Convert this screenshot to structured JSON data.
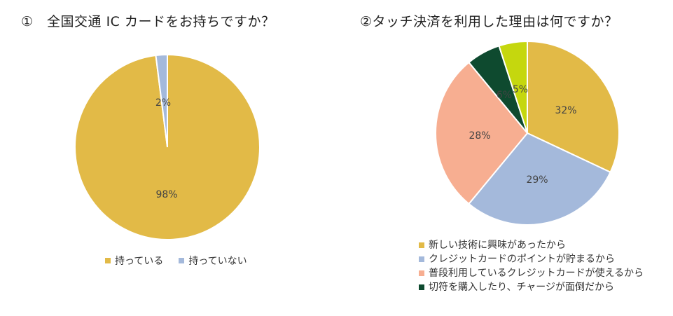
{
  "charts": {
    "title1": "①　全国交通 IC カードをお持ちですか？",
    "title2": "②タッチ決済を利用した理由は何ですか？"
  },
  "chart_data": [
    {
      "type": "pie",
      "title": "①　全国交通 IC カードをお持ちですか？",
      "series": [
        {
          "label": "持っている",
          "value": 98,
          "color": "#E2BA47"
        },
        {
          "label": "持っていない",
          "value": 2,
          "color": "#A4B9DB"
        }
      ],
      "legend_position": "bottom"
    },
    {
      "type": "pie",
      "title": "②タッチ決済を利用した理由は何ですか？",
      "series": [
        {
          "label": "新しい技術に興味があったから",
          "value": 32,
          "color": "#E2BA47"
        },
        {
          "label": "クレジットカードのポイントが貯まるから",
          "value": 29,
          "color": "#A4B9DB"
        },
        {
          "label": "普段利用しているクレジットカードが使えるから",
          "value": 28,
          "color": "#F7AE91"
        },
        {
          "label": "切符を購入したり、チャージが面倒だから",
          "value": 6,
          "color": "#0E4A2F"
        },
        {
          "value": 5,
          "color": "#C5D70E"
        }
      ],
      "legend_position": "bottom-left"
    }
  ]
}
